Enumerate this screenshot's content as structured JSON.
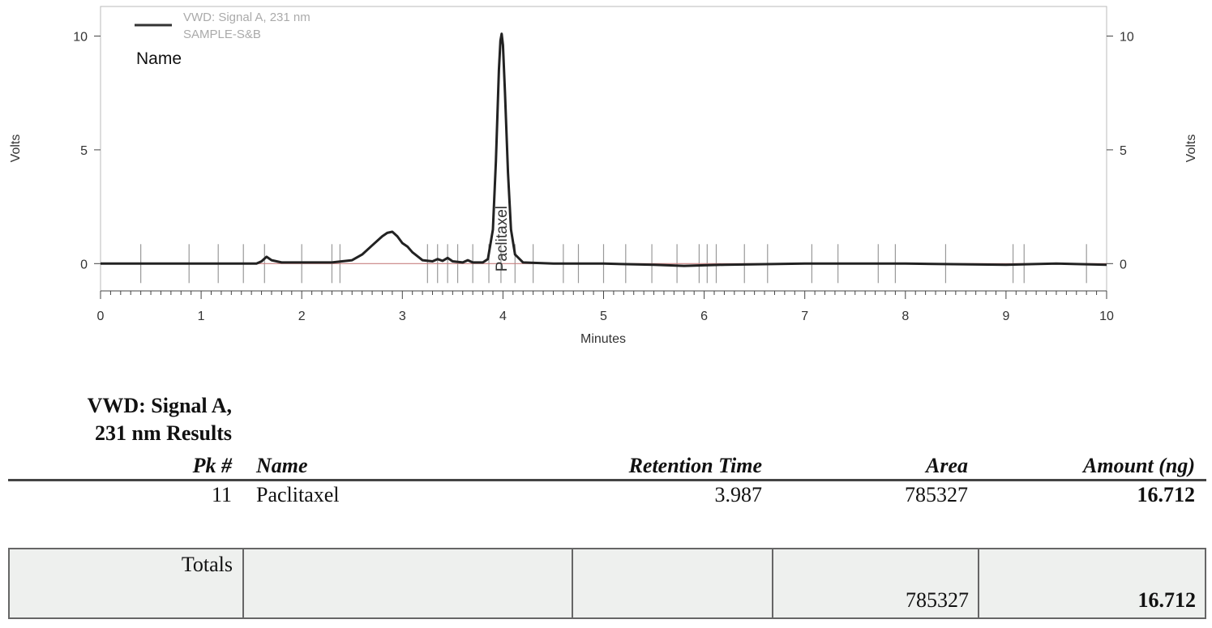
{
  "chart_data": {
    "type": "line",
    "legend": {
      "signal": "VWD: Signal A, 231 nm",
      "sample": "SAMPLE-S&B",
      "name_label": "Name",
      "placement": "top-left"
    },
    "xlabel": "Minutes",
    "ylabel_left": "Volts",
    "ylabel_right": "Volts",
    "xlim": [
      0,
      10
    ],
    "ylim": [
      -1.2,
      11.3
    ],
    "x_ticks": [
      "0",
      "1",
      "2",
      "3",
      "4",
      "5",
      "6",
      "7",
      "8",
      "9",
      "10"
    ],
    "y_ticks": [
      "0",
      "5",
      "10"
    ],
    "peak_annotation": {
      "label": "Paclitaxel",
      "x": 3.987
    },
    "baseline_color": "#c88080",
    "trace_color": "#222222",
    "peak_marks": [
      0.4,
      0.88,
      1.17,
      1.42,
      1.63,
      2.0,
      2.3,
      2.38,
      3.25,
      3.35,
      3.45,
      3.55,
      3.7,
      3.86,
      3.98,
      4.12,
      4.3,
      4.6,
      4.75,
      5.0,
      5.22,
      5.48,
      5.73,
      5.95,
      6.03,
      6.12,
      6.4,
      6.63,
      7.07,
      7.33,
      7.73,
      7.9,
      8.4,
      9.07,
      9.18,
      9.8
    ],
    "series": [
      {
        "x": [
          0,
          1.55,
          1.6,
          1.65,
          1.7,
          1.8,
          2.0,
          2.3,
          2.5,
          2.6,
          2.7,
          2.8,
          2.85,
          2.9,
          2.95,
          3.0,
          3.05,
          3.1,
          3.2,
          3.3,
          3.35,
          3.4,
          3.45,
          3.5,
          3.6,
          3.65,
          3.7,
          3.8,
          3.85,
          3.9,
          3.93,
          3.96,
          3.975,
          3.987,
          4.0,
          4.02,
          4.05,
          4.08,
          4.12,
          4.2,
          4.5,
          5.0,
          5.5,
          5.8,
          6.2,
          7.0,
          8.0,
          9.0,
          9.5,
          10.0
        ],
        "y": [
          0,
          0.0,
          0.1,
          0.3,
          0.15,
          0.05,
          0.05,
          0.05,
          0.15,
          0.4,
          0.8,
          1.2,
          1.35,
          1.4,
          1.2,
          0.9,
          0.75,
          0.5,
          0.15,
          0.1,
          0.2,
          0.12,
          0.25,
          0.1,
          0.05,
          0.15,
          0.05,
          0.05,
          0.2,
          1.5,
          4.5,
          8.5,
          9.8,
          10.1,
          9.6,
          7.5,
          4.0,
          1.5,
          0.4,
          0.05,
          0.0,
          0.0,
          -0.05,
          -0.1,
          -0.05,
          0.0,
          0.0,
          -0.05,
          0.0,
          -0.05
        ]
      }
    ]
  },
  "results": {
    "title_line1": "VWD: Signal A,",
    "title_line2": "231 nm Results",
    "headers": {
      "pk": "Pk #",
      "name": "Name",
      "rt": "Retention Time",
      "area": "Area",
      "amount": "Amount (ng)"
    },
    "row": {
      "pk": "11",
      "name": "Paclitaxel",
      "rt": "3.987",
      "area": "785327",
      "amount": "16.712"
    },
    "totals": {
      "label": "Totals",
      "area": "785327",
      "amount": "16.712"
    }
  }
}
